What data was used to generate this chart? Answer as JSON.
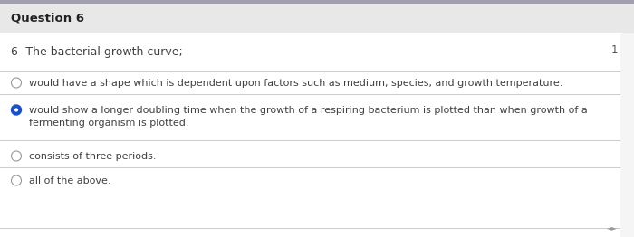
{
  "header": "Question 6",
  "header_bg": "#e8e8e8",
  "top_bar_color": "#a0a0b0",
  "bg_color": "#f5f5f5",
  "content_bg": "#ffffff",
  "question": "6- The bacterial growth curve;",
  "number_label": "1",
  "options": [
    {
      "text": "would have a shape which is dependent upon factors such as medium, species, and growth temperature.",
      "selected": false
    },
    {
      "text": "would show a longer doubling time when the growth of a respiring bacterium is plotted than when growth of a\nfermenting organism is plotted.",
      "selected": true
    },
    {
      "text": "consists of three periods.",
      "selected": false
    },
    {
      "text": "all of the above.",
      "selected": false
    }
  ],
  "header_font_size": 9.5,
  "question_font_size": 9,
  "option_font_size": 8,
  "radio_fill_selected": "#1a4fcc",
  "radio_fill_unselected": "#ffffff",
  "radio_border_unselected": "#999999",
  "radio_border_selected": "#1a4fcc",
  "divider_color": "#cccccc",
  "text_color": "#404040",
  "header_text_color": "#222222",
  "number_color": "#555555"
}
